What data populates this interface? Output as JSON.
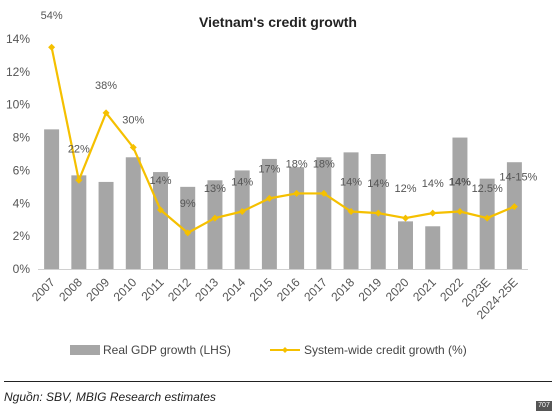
{
  "chart_data": {
    "type": "bar",
    "title": "Vietnam's credit growth",
    "categories": [
      "2007",
      "2008",
      "2009",
      "2010",
      "2011",
      "2012",
      "2013",
      "2014",
      "2015",
      "2016",
      "2017",
      "2018",
      "2019",
      "2020",
      "2021",
      "2022",
      "2023E",
      "2024-25E"
    ],
    "ylim": [
      0,
      14
    ],
    "yticks": [
      "0%",
      "2%",
      "4%",
      "6%",
      "8%",
      "10%",
      "12%",
      "14%"
    ],
    "grid": false,
    "legend_position": "bottom",
    "series": [
      {
        "name": "Real GDP growth (LHS)",
        "type": "bar",
        "color": "#a6a6a6",
        "values": [
          8.5,
          5.7,
          5.3,
          6.8,
          5.9,
          5.0,
          5.4,
          6.0,
          6.7,
          6.2,
          6.8,
          7.1,
          7.0,
          2.9,
          2.6,
          8.0,
          5.5,
          6.5
        ]
      },
      {
        "name": "System-wide credit growth (%)",
        "type": "line",
        "color": "#f5c000",
        "values": [
          13.5,
          5.4,
          9.5,
          7.4,
          3.6,
          2.2,
          3.1,
          3.5,
          4.3,
          4.6,
          4.6,
          3.5,
          3.4,
          3.1,
          3.4,
          3.5,
          3.1,
          3.8
        ],
        "labels": [
          "54%",
          "22%",
          "38%",
          "30%",
          "14%",
          "9%",
          "13%",
          "14%",
          "17%",
          "18%",
          "18%",
          "14%",
          "14%",
          "12%",
          "14%",
          "14%",
          "12.5%",
          "14-15%"
        ]
      }
    ],
    "label_styles": {
      "bold": [
        15
      ],
      "highlight": [
        16,
        17
      ],
      "highlight_color": "#e8001c"
    }
  },
  "source": "Nguồn: SBV, MBIG Research estimates",
  "page_badge": "707"
}
